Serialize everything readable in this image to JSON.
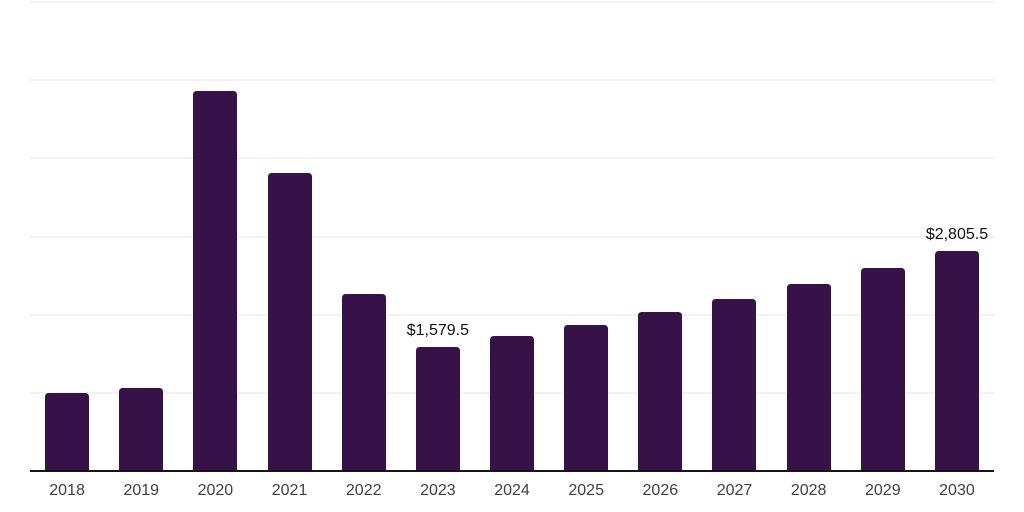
{
  "chart_data": {
    "type": "bar",
    "title": "",
    "xlabel": "",
    "ylabel": "",
    "categories": [
      "2018",
      "2019",
      "2020",
      "2021",
      "2022",
      "2023",
      "2024",
      "2025",
      "2026",
      "2027",
      "2028",
      "2029",
      "2030"
    ],
    "values": [
      990,
      1055,
      4850,
      3800,
      2250,
      1579.5,
      1715,
      1860,
      2020,
      2190,
      2380,
      2585,
      2805.5
    ],
    "data_labels": [
      "",
      "",
      "",
      "",
      "",
      "$1,579.5",
      "",
      "",
      "",
      "",
      "",
      "",
      "$2,805.5"
    ],
    "ylim": [
      0,
      6000
    ],
    "gridline_step": 1000,
    "grid": "horizontal",
    "legend": "none",
    "colors": {
      "bar": "#361249",
      "axis_line": "#151515",
      "gridline": "#f1f1f6",
      "tick_label": "#404040",
      "data_label": "#111111",
      "background": "#ffffff"
    }
  }
}
